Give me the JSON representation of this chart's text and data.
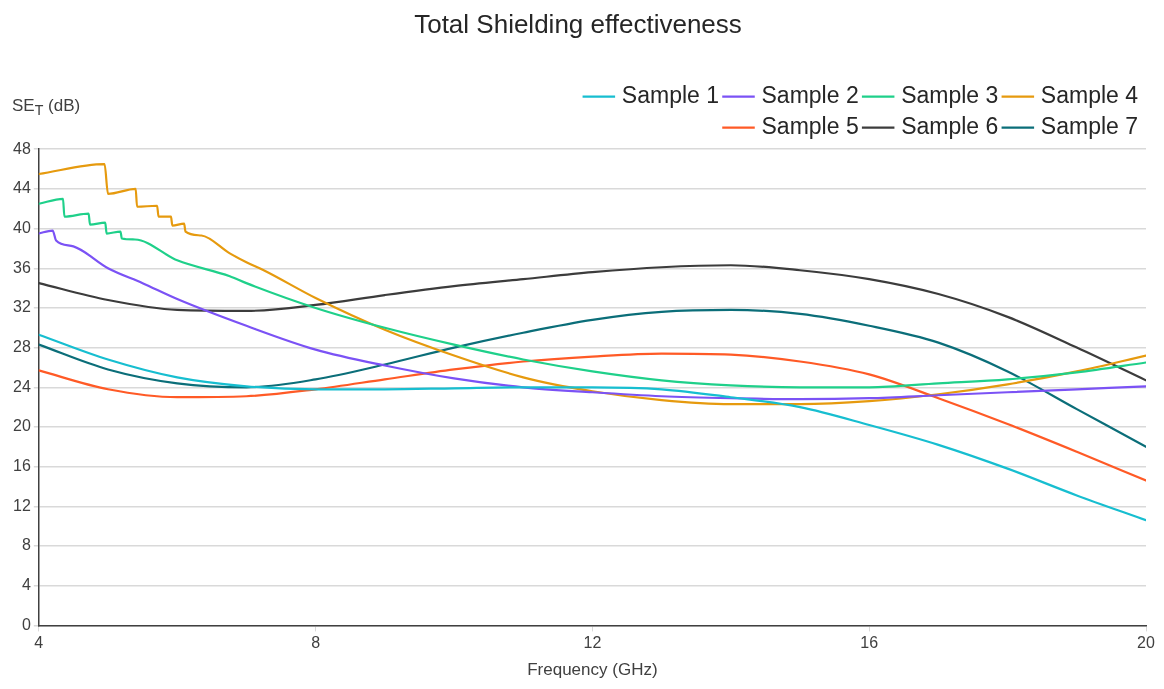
{
  "chart_data": {
    "type": "line",
    "title": "Total Shielding effectiveness",
    "xlabel": "Frequency (GHz)",
    "ylabel": "SE$_{T}$ (dB)",
    "xlim": [
      4,
      20
    ],
    "xticks": [
      4,
      8,
      12,
      16,
      20
    ],
    "ylim": [
      0,
      48
    ],
    "yticks": [
      0,
      4,
      8,
      12,
      16,
      20,
      24,
      28,
      32,
      36,
      40,
      44,
      48
    ],
    "grid": "y",
    "legend": "top right",
    "marker": "none",
    "line_style": "solid",
    "series": [
      {
        "name": "Sample 1",
        "color": "#17bed0",
        "x": [
          4,
          5,
          6,
          7,
          8,
          9,
          10,
          11,
          12,
          13,
          14,
          15,
          16,
          17,
          18,
          19,
          20
        ],
        "values": [
          29.3,
          26.8,
          25,
          24.1,
          23.8,
          23.8,
          23.9,
          24,
          24,
          23.8,
          23,
          22,
          20.2,
          18.2,
          15.8,
          13.1,
          10.6
        ]
      },
      {
        "name": "Sample 2",
        "color": "#7b52f5",
        "x": [
          4,
          4.2,
          4.25,
          4.5,
          5,
          5.5,
          6,
          7,
          8,
          9,
          10,
          11,
          12,
          13,
          14,
          15,
          16,
          17,
          18,
          19,
          20
        ],
        "values": [
          39.5,
          39.8,
          38.8,
          38.2,
          36,
          34.5,
          32.9,
          30.2,
          27.8,
          26.2,
          24.9,
          24,
          23.5,
          23.1,
          22.9,
          22.8,
          22.9,
          23.2,
          23.5,
          23.8,
          24.1
        ]
      },
      {
        "name": "Sample 3",
        "color": "#1fd08a",
        "x": [
          4,
          4.35,
          4.37,
          4.72,
          4.74,
          4.96,
          4.98,
          5.18,
          5.2,
          5.39,
          6,
          6.76,
          7,
          8,
          9,
          10,
          11,
          12,
          13,
          14,
          15,
          16,
          17,
          18,
          19,
          20
        ],
        "values": [
          42.5,
          43.0,
          41.2,
          41.5,
          40.4,
          40.6,
          39.5,
          39.7,
          39.0,
          38.9,
          36.8,
          35.2,
          34.5,
          32,
          30,
          28.3,
          26.8,
          25.6,
          24.7,
          24.2,
          24,
          24,
          24.4,
          24.8,
          25.5,
          26.5
        ]
      },
      {
        "name": "Sample 4",
        "color": "#e69a0e",
        "x": [
          4,
          4.95,
          5,
          5.4,
          5.42,
          5.71,
          5.73,
          5.91,
          5.93,
          6.1,
          6.12,
          6.35,
          6.76,
          7,
          7.25,
          8,
          9,
          10,
          11,
          12,
          13,
          14,
          15,
          16,
          17,
          18,
          19,
          20
        ],
        "values": [
          45.5,
          46.5,
          43.5,
          44.0,
          42.2,
          42.3,
          41.2,
          41.2,
          40.3,
          40.5,
          39.7,
          39.3,
          37.5,
          36.6,
          35.8,
          33,
          29.8,
          27.2,
          25,
          23.6,
          22.7,
          22.3,
          22.3,
          22.6,
          23.3,
          24.3,
          25.6,
          27.2
        ]
      },
      {
        "name": "Sample 5",
        "color": "#ff5a26",
        "x": [
          4,
          5,
          6,
          7,
          8,
          9,
          10,
          11,
          12,
          13,
          14,
          15,
          16,
          17,
          18,
          19,
          20
        ],
        "values": [
          25.7,
          23.8,
          23,
          23.1,
          23.8,
          24.8,
          25.8,
          26.6,
          27.1,
          27.4,
          27.3,
          26.6,
          25.3,
          22.9,
          20.3,
          17.5,
          14.6
        ]
      },
      {
        "name": "Sample 6",
        "color": "#3c3c3c",
        "x": [
          4,
          5,
          6,
          7,
          8,
          9,
          10,
          11,
          12,
          13,
          14,
          15,
          16,
          17,
          18,
          19,
          20
        ],
        "values": [
          34.5,
          32.8,
          31.8,
          31.7,
          32.3,
          33.3,
          34.2,
          34.9,
          35.6,
          36.1,
          36.3,
          35.8,
          34.9,
          33.4,
          31.1,
          28,
          24.7
        ]
      },
      {
        "name": "Sample 7",
        "color": "#0b6e79",
        "x": [
          4,
          5,
          6,
          7,
          8,
          9,
          10,
          11,
          12,
          13,
          14,
          15,
          16,
          17,
          18,
          19,
          20
        ],
        "values": [
          28.3,
          25.8,
          24.4,
          24,
          24.8,
          26.3,
          28,
          29.5,
          30.8,
          31.6,
          31.8,
          31.4,
          30.2,
          28.5,
          25.6,
          21.8,
          18
        ]
      }
    ]
  }
}
